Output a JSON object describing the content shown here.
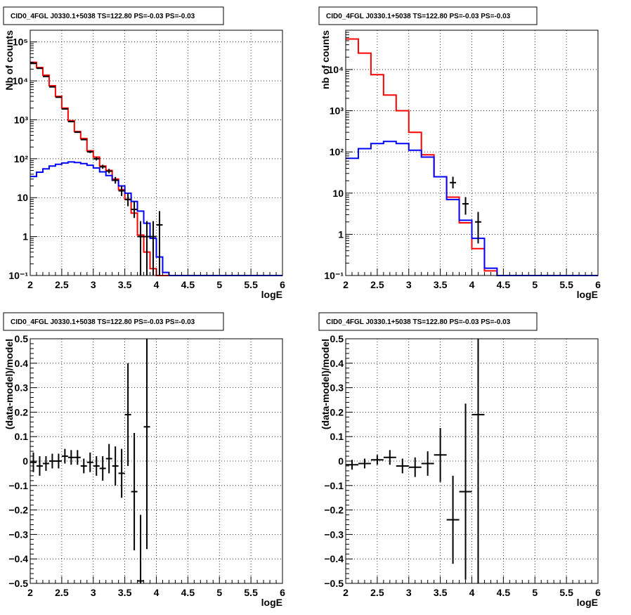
{
  "chart_data": [
    {
      "type": "line",
      "title": "CID0_4FGL J0330.1+5038 TS=122.80 PS=-0.03 PS=-0.03",
      "xlabel": "logE",
      "ylabel": "Nb of counts",
      "ylog": true,
      "xlim": [
        2,
        6
      ],
      "ylim": [
        0.1,
        200000
      ],
      "grid": true,
      "xticks": [
        "2",
        "2.5",
        "3",
        "3.5",
        "4",
        "4.5",
        "5",
        "5.5",
        "6"
      ],
      "yticks": [
        "10⁻¹",
        "1",
        "10",
        "10²",
        "10³",
        "10⁴",
        "10⁵"
      ],
      "series": [
        {
          "color": "#ff0000",
          "bin_edges": [
            2.0,
            2.1,
            2.2,
            2.3,
            2.4,
            2.5,
            2.6,
            2.7,
            2.8,
            2.9,
            3.0,
            3.1,
            3.2,
            3.3,
            3.4,
            3.5,
            3.6,
            3.7,
            3.8,
            3.9,
            4.0,
            4.1,
            4.2,
            4.3,
            4.4,
            4.5,
            4.6,
            4.7,
            4.8,
            4.9,
            5.0,
            5.1,
            5.2,
            5.3,
            5.4,
            5.5,
            5.6,
            5.7,
            5.8,
            5.9,
            6.0
          ],
          "values": [
            30000,
            22000,
            14000,
            7500,
            4000,
            2000,
            950,
            500,
            330,
            160,
            110,
            65,
            50,
            30,
            16,
            9,
            4,
            1.1,
            0.4,
            0.15,
            0.1,
            0.1,
            0.1,
            0.1,
            0.1,
            0.1,
            0.1,
            0.1,
            0.1,
            0.1,
            0.1,
            0.1,
            0.1,
            0.1,
            0.1,
            0.1,
            0.1,
            0.1,
            0.1,
            0.1
          ]
        },
        {
          "color": "#0000ff",
          "bin_edges": [
            2.0,
            2.1,
            2.2,
            2.3,
            2.4,
            2.5,
            2.6,
            2.7,
            2.8,
            2.9,
            3.0,
            3.1,
            3.2,
            3.3,
            3.4,
            3.5,
            3.6,
            3.7,
            3.8,
            3.9,
            4.0,
            4.1,
            4.2,
            4.3,
            4.4,
            4.5,
            4.6,
            4.7,
            4.8,
            4.9,
            5.0,
            5.1,
            5.2,
            5.3,
            5.4,
            5.5,
            5.6,
            5.7,
            5.8,
            5.9,
            6.0
          ],
          "values": [
            35,
            45,
            55,
            65,
            72,
            78,
            83,
            80,
            75,
            68,
            58,
            46,
            37,
            28,
            20,
            13,
            8,
            4.5,
            2.2,
            0.9,
            0.3,
            0.12,
            0.1,
            0.1,
            0.1,
            0.1,
            0.1,
            0.1,
            0.1,
            0.1,
            0.1,
            0.1,
            0.1,
            0.1,
            0.1,
            0.1,
            0.1,
            0.1,
            0.1,
            0.1
          ]
        }
      ],
      "points": {
        "color": "#000000",
        "x": [
          2.05,
          2.15,
          2.25,
          2.35,
          2.45,
          2.55,
          2.65,
          2.75,
          2.85,
          2.95,
          3.05,
          3.15,
          3.25,
          3.35,
          3.45,
          3.55,
          3.65,
          3.75,
          3.85,
          3.95,
          4.05
        ],
        "y": [
          28000,
          21000,
          13000,
          7000,
          3800,
          1900,
          900,
          480,
          310,
          150,
          100,
          62,
          48,
          28,
          15,
          9,
          5,
          1,
          1,
          1,
          2
        ],
        "ylo": [
          27500,
          20600,
          12700,
          6800,
          3700,
          1850,
          870,
          460,
          300,
          140,
          90,
          55,
          42,
          23,
          11,
          6,
          3,
          0.1,
          0.1,
          0.1,
          0.1
        ],
        "yhi": [
          28500,
          21400,
          13300,
          7200,
          3900,
          1950,
          930,
          500,
          320,
          160,
          110,
          70,
          55,
          34,
          20,
          13,
          8,
          2.5,
          2.5,
          2.5,
          4.5
        ]
      }
    },
    {
      "type": "line",
      "title": "CID0_4FGL J0330.1+5038 TS=122.80 PS=-0.03 PS=-0.03",
      "xlabel": "logE",
      "ylabel": "nb of counts",
      "ylog": true,
      "xlim": [
        2,
        6
      ],
      "ylim": [
        0.1,
        90000
      ],
      "grid": true,
      "xticks": [
        "2",
        "2.5",
        "3",
        "3.5",
        "4",
        "4.5",
        "5",
        "5.5",
        "6"
      ],
      "yticks": [
        "10⁻¹",
        "1",
        "10",
        "10²",
        "10³",
        "10⁴"
      ],
      "series": [
        {
          "color": "#ff0000",
          "bin_edges": [
            2.0,
            2.2,
            2.4,
            2.6,
            2.8,
            3.0,
            3.2,
            3.4,
            3.6,
            3.8,
            4.0,
            4.2,
            4.4,
            4.6,
            4.8,
            5.0,
            5.2,
            5.4,
            5.6,
            5.8,
            6.0
          ],
          "values": [
            55000,
            25000,
            7500,
            2400,
            1000,
            300,
            85,
            25,
            8,
            1.9,
            0.45,
            0.13,
            0.1,
            0.1,
            0.1,
            0.1,
            0.1,
            0.1,
            0.1,
            0.1
          ]
        },
        {
          "color": "#0000ff",
          "bin_edges": [
            2.0,
            2.2,
            2.4,
            2.6,
            2.8,
            3.0,
            3.2,
            3.4,
            3.6,
            3.8,
            4.0,
            4.2,
            4.4,
            4.6,
            4.8,
            5.0,
            5.2,
            5.4,
            5.6,
            5.8,
            6.0
          ],
          "values": [
            70,
            120,
            160,
            180,
            160,
            110,
            75,
            25,
            7,
            2.2,
            0.8,
            0.15,
            0.1,
            0.1,
            0.1,
            0.1,
            0.1,
            0.1,
            0.1,
            0.1
          ]
        }
      ],
      "points": {
        "color": "#000000",
        "x": [
          3.7,
          3.9,
          4.1
        ],
        "y": [
          18,
          5.5,
          2
        ],
        "ylo": [
          13,
          3,
          0.6
        ],
        "yhi": [
          25,
          8,
          3.5
        ]
      }
    },
    {
      "type": "scatter",
      "title": "CID0_4FGL J0330.1+5038 TS=122.80 PS=-0.03 PS=-0.03",
      "xlabel": "logE",
      "ylabel": "(data-model)/model",
      "xlim": [
        2,
        6
      ],
      "ylim": [
        -0.5,
        0.5
      ],
      "grid": true,
      "xticks": [
        "2",
        "2.5",
        "3",
        "3.5",
        "4",
        "4.5",
        "5",
        "5.5",
        "6"
      ],
      "yticks": [
        "−0.5",
        "−0.4",
        "−0.3",
        "−0.2",
        "−0.1",
        "0",
        "0.1",
        "0.2",
        "0.3",
        "0.4",
        "0.5"
      ],
      "points": {
        "color": "#000000",
        "x": [
          2.05,
          2.15,
          2.25,
          2.35,
          2.45,
          2.55,
          2.65,
          2.75,
          2.85,
          2.95,
          3.05,
          3.15,
          3.25,
          3.35,
          3.45,
          3.55,
          3.65,
          3.75,
          3.85
        ],
        "y": [
          -0.005,
          -0.02,
          -0.01,
          0.0,
          0.0,
          0.02,
          0.015,
          0.015,
          -0.02,
          -0.005,
          -0.02,
          -0.03,
          0.01,
          -0.02,
          -0.05,
          0.19,
          -0.125,
          -0.49,
          0.14
        ],
        "err": [
          0.04,
          0.04,
          0.03,
          0.03,
          0.03,
          0.03,
          0.03,
          0.03,
          0.03,
          0.04,
          0.04,
          0.05,
          0.06,
          0.08,
          0.1,
          0.21,
          0.24,
          0.27,
          0.5
        ],
        "xerr": 0.05
      }
    },
    {
      "type": "scatter",
      "title": "CID0_4FGL J0330.1+5038 TS=122.80 PS=-0.03 PS=-0.03",
      "xlabel": "logE",
      "ylabel": "(data-model)/model",
      "xlim": [
        2,
        6
      ],
      "ylim": [
        -0.5,
        0.5
      ],
      "grid": true,
      "xticks": [
        "2",
        "2.5",
        "3",
        "3.5",
        "4",
        "4.5",
        "5",
        "5.5",
        "6"
      ],
      "yticks": [
        "−0.5",
        "−0.4",
        "−0.3",
        "−0.2",
        "−0.1",
        "0",
        "0.1",
        "0.2",
        "0.3",
        "0.4",
        "0.5"
      ],
      "points": {
        "color": "#000000",
        "x": [
          2.1,
          2.3,
          2.5,
          2.7,
          2.9,
          3.1,
          3.3,
          3.5,
          3.7,
          3.9,
          4.1
        ],
        "y": [
          -0.015,
          -0.01,
          0.005,
          0.015,
          -0.02,
          -0.025,
          -0.01,
          0.025,
          -0.24,
          -0.125,
          0.19
        ],
        "err": [
          0.02,
          0.02,
          0.02,
          0.03,
          0.03,
          0.04,
          0.05,
          0.11,
          0.18,
          0.36,
          0.7
        ],
        "xerr": 0.1
      }
    }
  ]
}
